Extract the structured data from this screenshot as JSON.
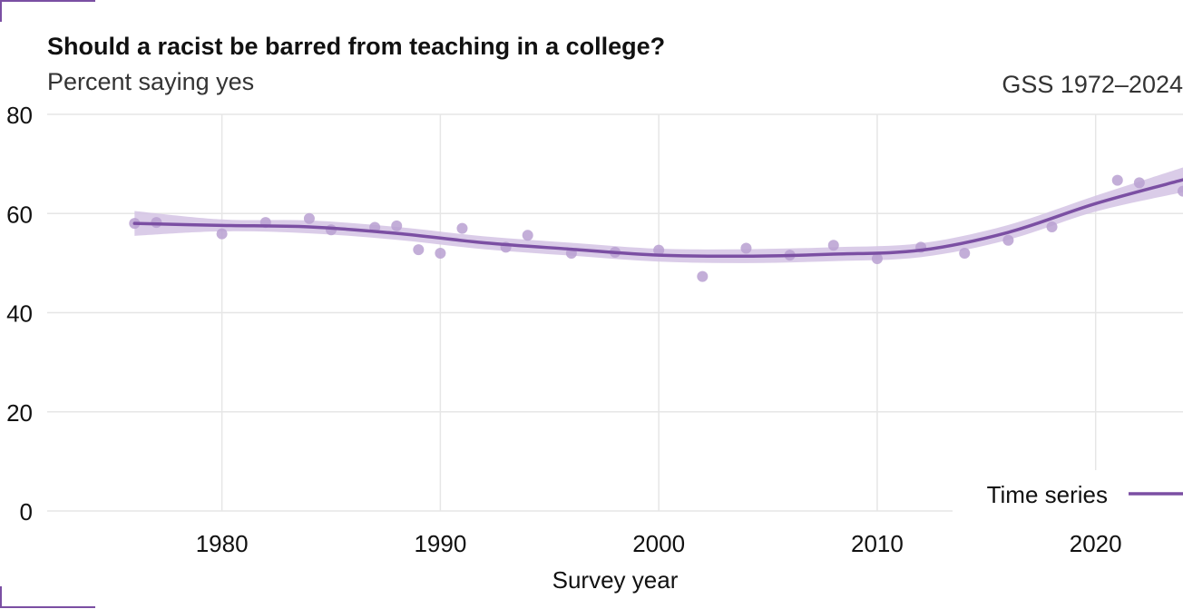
{
  "title": "Should a racist be barred from teaching in a college?",
  "subtitle": "Percent saying yes",
  "source": "GSS 1972–2024",
  "colors": {
    "series": "#7b4fa3",
    "points": "#b9a0d1",
    "band": "#d3c3e4",
    "grid": "#e6e6e6"
  },
  "chart_data": {
    "type": "line",
    "title": "Should a racist be barred from teaching in a college?",
    "subtitle": "Percent saying yes",
    "xlabel": "Survey year",
    "ylabel": "",
    "xlim": [
      1972,
      2024
    ],
    "ylim": [
      0,
      80
    ],
    "x_ticks": [
      1980,
      1990,
      2000,
      2010,
      2020
    ],
    "y_ticks": [
      0,
      20,
      40,
      60,
      80
    ],
    "grid": true,
    "legend": {
      "position": "bottom-right",
      "entries": [
        "Time series"
      ]
    },
    "points": {
      "x": [
        1976,
        1977,
        1980,
        1982,
        1984,
        1985,
        1987,
        1988,
        1989,
        1990,
        1991,
        1993,
        1994,
        1996,
        1998,
        2000,
        2002,
        2004,
        2006,
        2008,
        2010,
        2012,
        2014,
        2016,
        2018,
        2021,
        2022,
        2024
      ],
      "y": [
        58.0,
        58.2,
        55.9,
        58.2,
        59.0,
        56.7,
        57.2,
        57.5,
        52.7,
        52.0,
        57.0,
        53.2,
        55.6,
        52.0,
        52.2,
        52.6,
        47.3,
        53.0,
        51.6,
        53.6,
        50.9,
        53.2,
        52.0,
        54.6,
        57.3,
        66.7,
        66.2,
        64.5
      ]
    },
    "series": [
      {
        "name": "Time series",
        "x": [
          1976,
          1980,
          1984,
          1988,
          1992,
          1996,
          2000,
          2004,
          2008,
          2012,
          2016,
          2020,
          2024
        ],
        "y": [
          58.0,
          57.6,
          57.3,
          56.0,
          54.1,
          52.8,
          51.6,
          51.4,
          51.8,
          52.6,
          56.2,
          62.0,
          66.8
        ],
        "ci_upper": [
          60.5,
          58.8,
          58.6,
          57.3,
          55.4,
          54.1,
          52.9,
          52.8,
          53.2,
          54.0,
          57.7,
          63.6,
          69.3
        ],
        "ci_lower": [
          55.5,
          56.4,
          56.0,
          54.7,
          52.8,
          51.5,
          50.3,
          50.0,
          50.4,
          51.2,
          54.7,
          60.4,
          64.3
        ]
      }
    ]
  }
}
